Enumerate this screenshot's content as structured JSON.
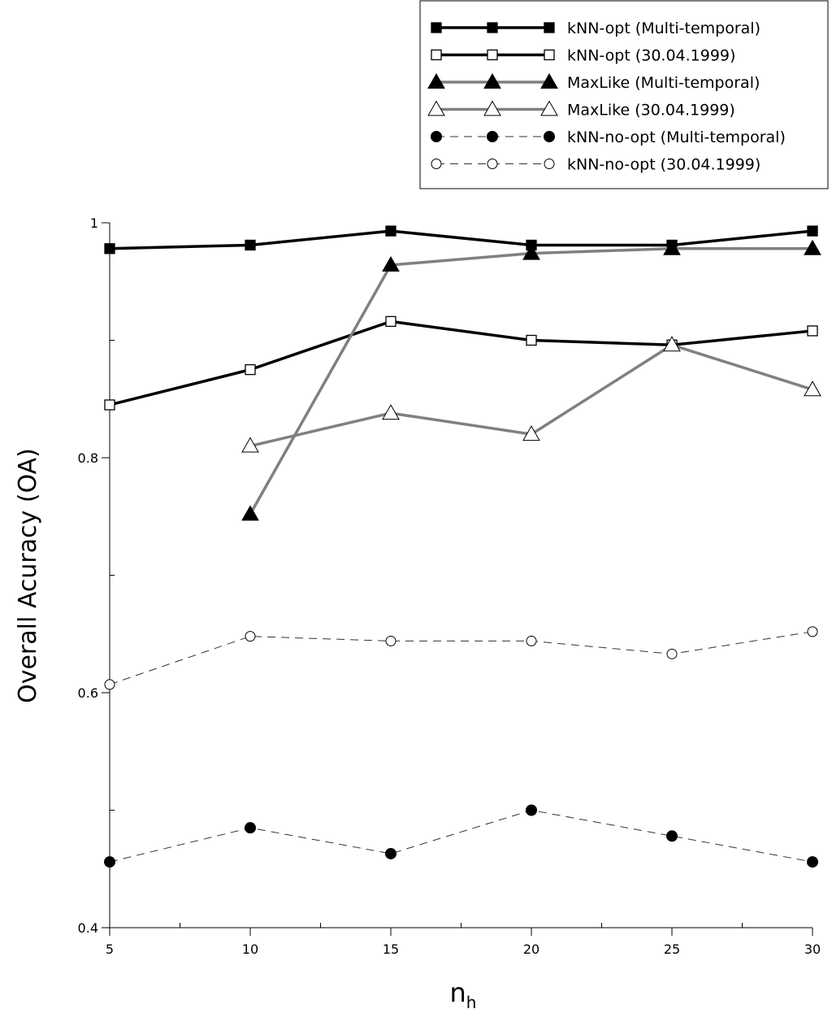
{
  "chart_data": {
    "type": "line",
    "title": "",
    "xlabel": "n",
    "xlabel_subscript": "h",
    "ylabel": "Overall Acuracy (OA)",
    "xlim": [
      5,
      30
    ],
    "ylim": [
      0.4,
      1.0
    ],
    "x_ticks": [
      5,
      10,
      15,
      20,
      25,
      30
    ],
    "x_tick_labels": [
      "5",
      "10",
      "15",
      "20",
      "25",
      "30"
    ],
    "y_ticks": [
      0.4,
      0.6,
      0.8,
      1.0
    ],
    "y_tick_labels": [
      "0.4",
      "0.6",
      "0.8",
      "1"
    ],
    "legend_position": "top-right",
    "series": [
      {
        "name": "kNN-opt (Multi-temporal)",
        "color": "#000000",
        "dash": "solid",
        "marker": "square-filled",
        "x": [
          5,
          10,
          15,
          20,
          25,
          30
        ],
        "values": [
          0.978,
          0.981,
          0.993,
          0.981,
          0.981,
          0.993
        ]
      },
      {
        "name": "kNN-opt (30.04.1999)",
        "color": "#000000",
        "dash": "solid",
        "marker": "square-open",
        "x": [
          5,
          10,
          15,
          20,
          25,
          30
        ],
        "values": [
          0.845,
          0.875,
          0.916,
          0.9,
          0.896,
          0.908
        ]
      },
      {
        "name": "MaxLike (Multi-temporal)",
        "color": "#808080",
        "dash": "solid",
        "marker": "triangle-filled",
        "x": [
          10,
          15,
          20,
          25,
          30
        ],
        "values": [
          0.752,
          0.964,
          0.974,
          0.978,
          0.978
        ]
      },
      {
        "name": "MaxLike (30.04.1999)",
        "color": "#808080",
        "dash": "solid",
        "marker": "triangle-open",
        "x": [
          10,
          15,
          20,
          25,
          30
        ],
        "values": [
          0.81,
          0.838,
          0.82,
          0.896,
          0.858
        ]
      },
      {
        "name": "kNN-no-opt (Multi-temporal)",
        "color": "#000000",
        "dash": "dashed",
        "marker": "circle-filled",
        "x": [
          5,
          10,
          15,
          20,
          25,
          30
        ],
        "values": [
          0.456,
          0.485,
          0.463,
          0.5,
          0.478,
          0.456
        ]
      },
      {
        "name": "kNN-no-opt (30.04.1999)",
        "color": "#000000",
        "dash": "dashed",
        "marker": "circle-open",
        "x": [
          5,
          10,
          15,
          20,
          25,
          30
        ],
        "values": [
          0.607,
          0.648,
          0.644,
          0.644,
          0.633,
          0.652
        ]
      }
    ]
  }
}
